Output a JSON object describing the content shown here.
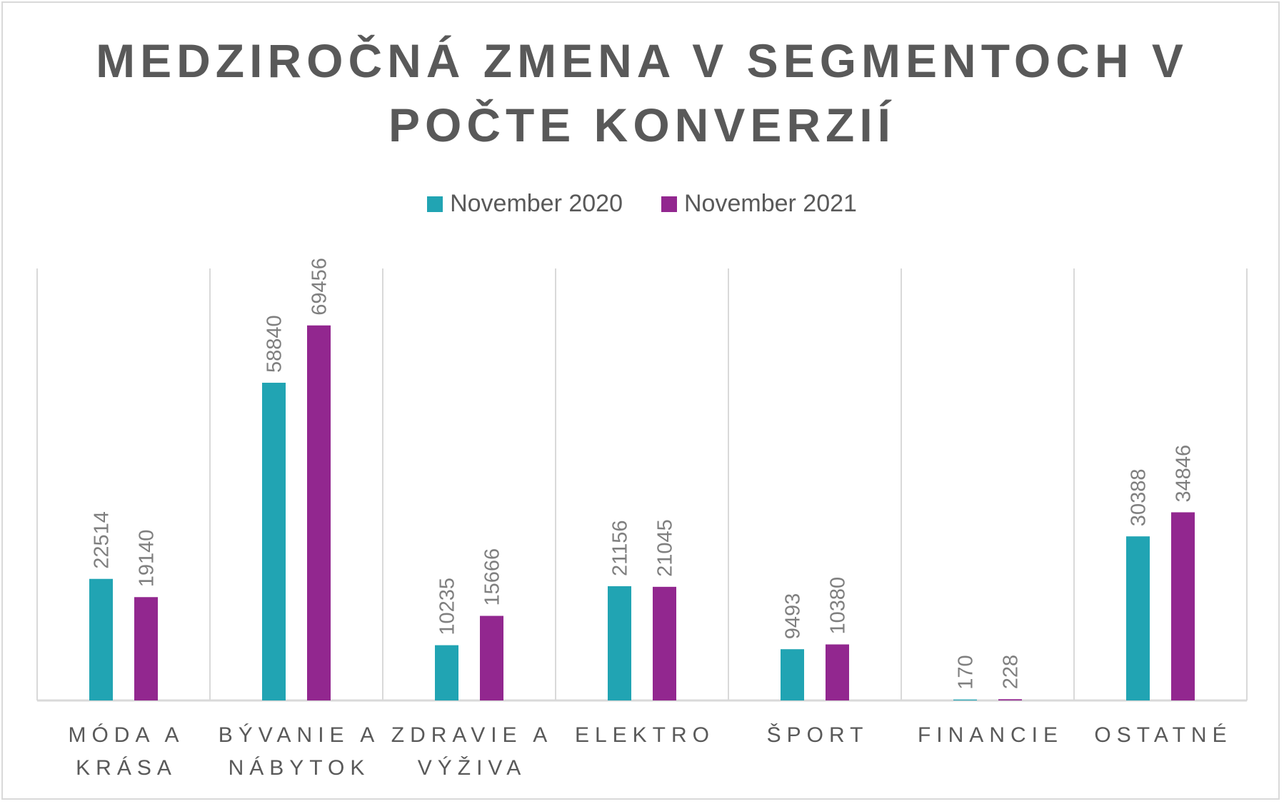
{
  "chart_data": {
    "type": "bar",
    "title": "MEDZIROČNÁ ZMENA V SEGMENTOCH V POČTE KONVERZIÍ",
    "title_lines": [
      "MEDZIROČNÁ ZMENA V SEGMENTOCH V",
      "POČTE KONVERZIÍ"
    ],
    "categories": [
      [
        "MÓDA A",
        "KRÁSA"
      ],
      [
        "BÝVANIE A",
        "NÁBYTOK"
      ],
      [
        "ZDRAVIE A",
        "VÝŽIVA"
      ],
      [
        "ELEKTRO"
      ],
      [
        "ŠPORT"
      ],
      [
        "FINANCIE"
      ],
      [
        "OSTATNÉ"
      ]
    ],
    "series": [
      {
        "name": "November 2020",
        "color": "#21a4b3",
        "values": [
          22514,
          58840,
          10235,
          21156,
          9493,
          170,
          30388
        ]
      },
      {
        "name": "November 2021",
        "color": "#92278f",
        "values": [
          19140,
          69456,
          15666,
          21045,
          10380,
          228,
          34846
        ]
      }
    ],
    "ylim": [
      0,
      80000
    ],
    "xlabel": "",
    "ylabel": "",
    "grid": "vertical category separators",
    "legend": "top"
  }
}
